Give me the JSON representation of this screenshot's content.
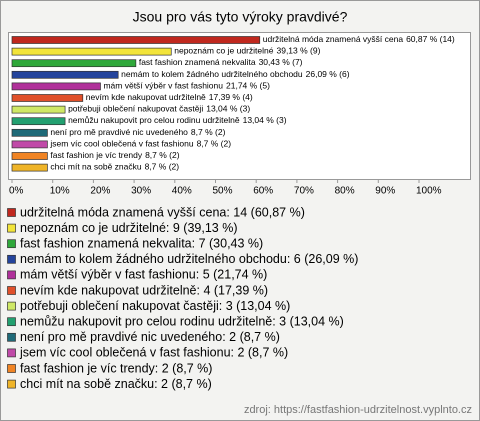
{
  "chart_data": {
    "type": "bar",
    "orientation": "horizontal",
    "title": "Jsou pro vás tyto výroky pravdivé?",
    "categories": [
      "udržitelná móda znamená vyšší cena",
      "nepoznám co je udržitelné",
      "fast fashion znamená nekvalita",
      "nemám to kolem žádného udržitelného obchodu",
      "mám větší výběr v fast fashionu",
      "nevím kde nakupovat udržitelně",
      "potřebuji oblečení nakupovat častěji",
      "nemůžu nakupovit pro celou rodinu udržitelně",
      "není pro mě pravdivé nic uvedeného",
      "jsem víc cool oblečená v fast fashionu",
      "fast fashion je víc trendy",
      "chci mít na sobě značku"
    ],
    "values": [
      60.87,
      39.13,
      30.43,
      26.09,
      21.74,
      17.39,
      13.04,
      13.04,
      8.7,
      8.7,
      8.7,
      8.7
    ],
    "counts": [
      14,
      9,
      7,
      6,
      5,
      4,
      3,
      3,
      2,
      2,
      2,
      2
    ],
    "value_labels": [
      "60,87 % (14)",
      "39,13 % (9)",
      "30,43 % (7)",
      "26,09 % (6)",
      "21,74 % (5)",
      "17,39 % (4)",
      "13,04 % (3)",
      "13,04 % (3)",
      "8,7 % (2)",
      "8,7 % (2)",
      "8,7 % (2)",
      "8,7 % (2)"
    ],
    "legend": [
      "udržitelná móda znamená vyšší cena: 14 (60,87 %)",
      "nepoznám co je udržitelné: 9 (39,13 %)",
      "fast fashion znamená nekvalita: 7 (30,43 %)",
      "nemám to kolem žádného udržitelného obchodu: 6 (26,09 %)",
      "mám větší výběr v fast fashionu: 5 (21,74 %)",
      "nevím kde nakupovat udržitelně: 4 (17,39 %)",
      "potřebuji oblečení nakupovat častěji: 3 (13,04 %)",
      "nemůžu nakupovit pro celou rodinu udržitelně: 3 (13,04 %)",
      "není pro mě pravdivé nic uvedeného: 2 (8,7 %)",
      "jsem víc cool oblečená v fast fashionu: 2 (8,7 %)",
      "fast fashion je víc trendy: 2 (8,7 %)",
      "chci mít na sobě značku: 2 (8,7 %)"
    ],
    "colors": [
      "#c0281e",
      "#f2e43a",
      "#2fa83a",
      "#24449c",
      "#b0309a",
      "#e0502a",
      "#cfe866",
      "#22a070",
      "#1f6a78",
      "#c04aa8",
      "#f08424",
      "#efb428"
    ],
    "xlim": [
      0,
      100
    ],
    "xticks": [
      {
        "value": 0,
        "label": "0%"
      },
      {
        "value": 10,
        "label": "10%"
      },
      {
        "value": 20,
        "label": "20%"
      },
      {
        "value": 30,
        "label": "30%"
      },
      {
        "value": 40,
        "label": "40%"
      },
      {
        "value": 50,
        "label": "50%"
      },
      {
        "value": 60,
        "label": "60%"
      },
      {
        "value": 70,
        "label": "70%"
      },
      {
        "value": 80,
        "label": "80%"
      },
      {
        "value": 90,
        "label": "90%"
      },
      {
        "value": 100,
        "label": "100%"
      }
    ],
    "source": "zdroj: https://fastfashion-udrzitelnost.vyplnto.cz"
  }
}
